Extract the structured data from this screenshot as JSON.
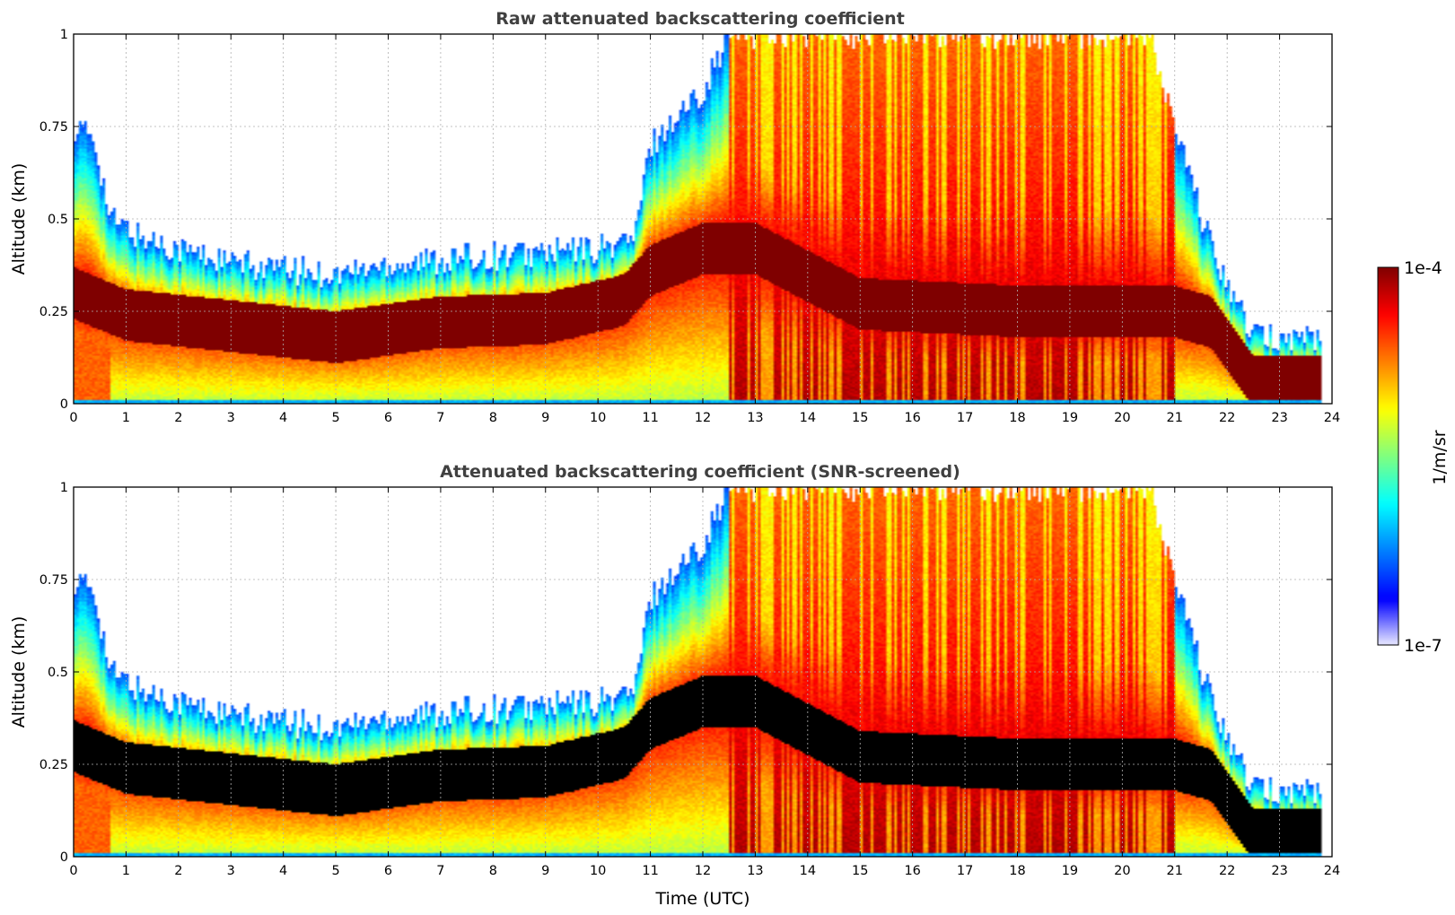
{
  "chart_data": [
    {
      "type": "heatmap",
      "title": "Raw attenuated backscattering coefficient",
      "xlabel": "",
      "ylabel": "Altitude (km)",
      "xlim": [
        0,
        24
      ],
      "ylim": [
        0,
        1
      ],
      "x_ticks": [
        "0",
        "1",
        "2",
        "3",
        "4",
        "5",
        "6",
        "7",
        "8",
        "9",
        "10",
        "11",
        "12",
        "13",
        "14",
        "15",
        "16",
        "17",
        "18",
        "19",
        "20",
        "21",
        "22",
        "23",
        "24"
      ],
      "y_ticks": [
        "0",
        "0.25",
        "0.5",
        "0.75",
        "1"
      ],
      "grid": true,
      "screened": false
    },
    {
      "type": "heatmap",
      "title": "Attenuated backscattering coefficient (SNR-screened)",
      "xlabel": "Time (UTC)",
      "ylabel": "Altitude (km)",
      "xlim": [
        0,
        24
      ],
      "ylim": [
        0,
        1
      ],
      "x_ticks": [
        "0",
        "1",
        "2",
        "3",
        "4",
        "5",
        "6",
        "7",
        "8",
        "9",
        "10",
        "11",
        "12",
        "13",
        "14",
        "15",
        "16",
        "17",
        "18",
        "19",
        "20",
        "21",
        "22",
        "23",
        "24"
      ],
      "y_ticks": [
        "0",
        "0.25",
        "0.5",
        "0.75",
        "1"
      ],
      "grid": true,
      "screened": true
    }
  ],
  "colorbar": {
    "label": "1/m/sr",
    "max_label": "1e-4",
    "min_label": "1e-7",
    "scale": "log",
    "colormap": "jet",
    "over_color": "#7f0000",
    "under_color": "#ffffff"
  },
  "field": {
    "top_hours": [
      0,
      0.4,
      0.7,
      1.3,
      3,
      5,
      6,
      7,
      8,
      9,
      10,
      10.7,
      11,
      12,
      12.5,
      13,
      15,
      20.5,
      21,
      21.7,
      22.5,
      23.8
    ],
    "top_km": [
      0.75,
      0.72,
      0.5,
      0.45,
      0.38,
      0.35,
      0.38,
      0.39,
      0.4,
      0.41,
      0.42,
      0.45,
      0.7,
      0.85,
      1.0,
      1.0,
      1.0,
      1.0,
      0.75,
      0.42,
      0.18,
      0.18
    ],
    "layer_center_hours": [
      0,
      1,
      3,
      5,
      7,
      9,
      10.5,
      11,
      12,
      13,
      15,
      18,
      21,
      21.7,
      22.5,
      23.8
    ],
    "layer_center_km": [
      0.3,
      0.24,
      0.21,
      0.18,
      0.22,
      0.23,
      0.28,
      0.36,
      0.42,
      0.42,
      0.27,
      0.25,
      0.25,
      0.22,
      0.06,
      0.06
    ],
    "data_end_hour": 23.8
  }
}
